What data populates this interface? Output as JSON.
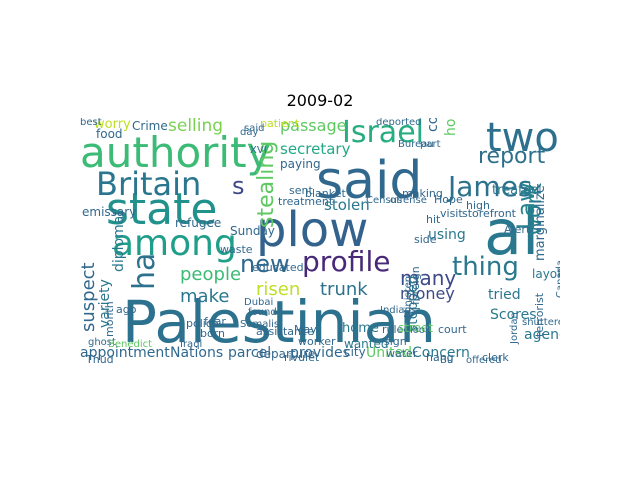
{
  "chart_data": {
    "type": "wordcloud",
    "title": "2009-02",
    "words": [
      {
        "text": "Palestinian",
        "color": "#2c728e"
      },
      {
        "text": "said",
        "color": "#31688e"
      },
      {
        "text": "al",
        "color": "#2a788e"
      },
      {
        "text": "authority",
        "color": "#3bbb75"
      },
      {
        "text": "state",
        "color": "#21918c"
      },
      {
        "text": "plow",
        "color": "#33638d"
      },
      {
        "text": "two",
        "color": "#2d708e"
      },
      {
        "text": "among",
        "color": "#1f9e89"
      },
      {
        "text": "Israel",
        "color": "#27ad81"
      },
      {
        "text": "Britain",
        "color": "#2a768e"
      },
      {
        "text": "James",
        "color": "#2c728e"
      },
      {
        "text": "profile",
        "color": "#482878"
      },
      {
        "text": "thing",
        "color": "#2a788e"
      },
      {
        "text": "new",
        "color": "#31688e"
      },
      {
        "text": "report",
        "color": "#2d708e"
      },
      {
        "text": "Law",
        "color": "#25848e"
      },
      {
        "text": "ha",
        "color": "#2c728e"
      },
      {
        "text": "work",
        "color": "#277f8e"
      },
      {
        "text": "s",
        "color": "#3e4989"
      },
      {
        "text": "stealing",
        "color": "#5ec962"
      },
      {
        "text": "people",
        "color": "#3bbb75"
      },
      {
        "text": "many",
        "color": "#3e4989"
      },
      {
        "text": "suspect",
        "color": "#31688e"
      },
      {
        "text": "make",
        "color": "#2a788e"
      },
      {
        "text": "trunk",
        "color": "#2c728e"
      },
      {
        "text": "money",
        "color": "#3e4989"
      },
      {
        "text": "risen",
        "color": "#bddf26"
      },
      {
        "text": "selling",
        "color": "#7ad151"
      },
      {
        "text": "passage",
        "color": "#5ec962"
      },
      {
        "text": "secretary",
        "color": "#22a884"
      },
      {
        "text": "stolen",
        "color": "#2a788e"
      },
      {
        "text": "using",
        "color": "#2a788e"
      },
      {
        "text": "variety",
        "color": "#2a788e"
      },
      {
        "text": "diplomat",
        "color": "#2a788e"
      },
      {
        "text": "Concern",
        "color": "#2a788e"
      },
      {
        "text": "tried",
        "color": "#2a788e"
      },
      {
        "text": "appointment",
        "color": "#31688e"
      },
      {
        "text": "Nations",
        "color": "#31688e"
      },
      {
        "text": "parcel",
        "color": "#31688e"
      },
      {
        "text": "provides",
        "color": "#31688e"
      },
      {
        "text": "city",
        "color": "#31688e"
      },
      {
        "text": "United",
        "color": "#5ec962"
      },
      {
        "text": "agency",
        "color": "#2a788e"
      },
      {
        "text": "Scores",
        "color": "#2a788e"
      },
      {
        "text": "confiscated",
        "color": "#31688e"
      },
      {
        "text": "hospital",
        "color": "#5ec962"
      },
      {
        "text": "treated",
        "color": "#2a788e"
      },
      {
        "text": "marginalize",
        "color": "#31688e"
      },
      {
        "text": "layoff",
        "color": "#2a788e"
      },
      {
        "text": "stopped",
        "color": "#2a788e"
      },
      {
        "text": "home",
        "color": "#2a788e"
      },
      {
        "text": "wanted",
        "color": "#2a788e"
      },
      {
        "text": "worry",
        "color": "#bddf26"
      },
      {
        "text": "Crime",
        "color": "#31688e"
      },
      {
        "text": "food",
        "color": "#31688e"
      },
      {
        "text": "emissary",
        "color": "#31688e"
      },
      {
        "text": "refugee",
        "color": "#31688e"
      },
      {
        "text": "paying",
        "color": "#31688e"
      },
      {
        "text": "sent",
        "color": "#31688e"
      },
      {
        "text": "blanket",
        "color": "#31688e"
      },
      {
        "text": "treatment",
        "color": "#31688e"
      },
      {
        "text": "police",
        "color": "#31688e"
      },
      {
        "text": "assistance",
        "color": "#31688e"
      },
      {
        "text": "departure",
        "color": "#31688e"
      },
      {
        "text": "rivulet",
        "color": "#31688e"
      },
      {
        "text": "ruled",
        "color": "#31688e"
      },
      {
        "text": "court",
        "color": "#31688e"
      },
      {
        "text": "sign",
        "color": "#31688e"
      },
      {
        "text": "street",
        "color": "#5ec962"
      },
      {
        "text": "hang",
        "color": "#31688e"
      },
      {
        "text": "clerk",
        "color": "#31688e"
      },
      {
        "text": "terrorist",
        "color": "#31688e"
      },
      {
        "text": "Canada",
        "color": "#31688e"
      },
      {
        "text": "Hope",
        "color": "#31688e"
      },
      {
        "text": "high",
        "color": "#31688e"
      },
      {
        "text": "visit",
        "color": "#31688e"
      },
      {
        "text": "storefront",
        "color": "#31688e"
      },
      {
        "text": "Alert",
        "color": "#31688e"
      },
      {
        "text": "hit",
        "color": "#31688e"
      },
      {
        "text": "side",
        "color": "#31688e"
      },
      {
        "text": "water",
        "color": "#31688e"
      },
      {
        "text": "Sunday",
        "color": "#31688e"
      },
      {
        "text": "patient",
        "color": "#bddf26"
      },
      {
        "text": "educated",
        "color": "#31688e"
      },
      {
        "text": "waste",
        "color": "#31688e"
      },
      {
        "text": "fear",
        "color": "#31688e"
      },
      {
        "text": "born",
        "color": "#31688e"
      },
      {
        "text": "ago",
        "color": "#31688e"
      },
      {
        "text": "ghost",
        "color": "#31688e"
      },
      {
        "text": "month",
        "color": "#31688e"
      },
      {
        "text": "Benedict",
        "color": "#5ec962"
      },
      {
        "text": "Thud",
        "color": "#31688e"
      },
      {
        "text": "worker",
        "color": "#31688e"
      },
      {
        "text": "May",
        "color": "#31688e"
      },
      {
        "text": "making",
        "color": "#31688e"
      },
      {
        "text": "foreign",
        "color": "#31688e"
      },
      {
        "text": "Minister",
        "color": "#31688e"
      },
      {
        "text": "Jordan",
        "color": "#31688e"
      },
      {
        "text": "shuttered",
        "color": "#31688e"
      },
      {
        "text": "Census",
        "color": "#31688e"
      },
      {
        "text": "offense",
        "color": "#31688e"
      },
      {
        "text": "deported",
        "color": "#31688e"
      },
      {
        "text": "Bureau",
        "color": "#31688e"
      },
      {
        "text": "part",
        "color": "#31688e"
      },
      {
        "text": "found",
        "color": "#31688e"
      },
      {
        "text": "Somalis",
        "color": "#31688e"
      },
      {
        "text": "Iraqi",
        "color": "#31688e"
      },
      {
        "text": "day",
        "color": "#31688e"
      },
      {
        "text": "XVI",
        "color": "#31688e"
      },
      {
        "text": "said",
        "color": "#31688e"
      },
      {
        "text": "Dubai",
        "color": "#31688e"
      },
      {
        "text": "Bu",
        "color": "#31688e"
      },
      {
        "text": "offered",
        "color": "#31688e"
      },
      {
        "text": "Indians",
        "color": "#31688e"
      },
      {
        "text": "look",
        "color": "#31688e"
      },
      {
        "text": "best",
        "color": "#31688e"
      }
    ]
  }
}
